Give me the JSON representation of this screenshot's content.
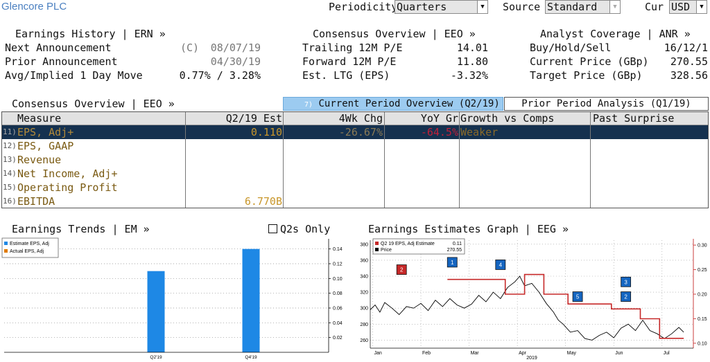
{
  "company": "Glencore PLC",
  "controls": {
    "periodicity_label": "Periodicity",
    "periodicity_value": "Quarters",
    "source_label": "Source",
    "source_value": "Standard",
    "cur_label": "Cur",
    "cur_value": "USD"
  },
  "earnings_history": {
    "title": "Earnings History | ERN »",
    "rows": [
      {
        "label": "Next Announcement",
        "prefix": "(C)",
        "value": "08/07/19"
      },
      {
        "label": "Prior Announcement",
        "prefix": "",
        "value": "04/30/19"
      },
      {
        "label": "Avg/Implied 1 Day Move",
        "prefix": "",
        "value": "0.77% / 3.28%"
      }
    ]
  },
  "consensus_overview_top": {
    "title": "Consensus Overview | EEO »",
    "rows": [
      {
        "label": "Trailing 12M P/E",
        "value": "14.01"
      },
      {
        "label": "Forward 12M P/E",
        "value": "11.80"
      },
      {
        "label": "Est. LTG (EPS)",
        "value": "-3.32%"
      }
    ]
  },
  "analyst_coverage": {
    "title": "Analyst Coverage | ANR »",
    "rows": [
      {
        "label": "Buy/Hold/Sell",
        "value": "16/12/1"
      },
      {
        "label": "Current Price (GBp)",
        "value": "270.55"
      },
      {
        "label": "Target Price (GBp)",
        "value": "328.56"
      }
    ]
  },
  "consensus_table": {
    "title": "Consensus Overview | EEO »",
    "tab_current_num": "7)",
    "tab_current": "Current Period Overview (Q2/19)",
    "tab_prior": "Prior Period Analysis (Q1/19)",
    "headers": [
      "Measure",
      "Q2/19 Est",
      "4Wk Chg",
      "YoY Gr",
      "Growth vs Comps",
      "Past Surprise"
    ],
    "rows": [
      {
        "num": "11)",
        "label": "EPS, Adj+",
        "est": "0.110",
        "chg": "-26.67%",
        "yoy": "-64.5%",
        "growth": "Weaker",
        "surprise": ""
      },
      {
        "num": "12)",
        "label": "EPS, GAAP",
        "est": "",
        "chg": "",
        "yoy": "",
        "growth": "",
        "surprise": ""
      },
      {
        "num": "13)",
        "label": "Revenue",
        "est": "",
        "chg": "",
        "yoy": "",
        "growth": "",
        "surprise": ""
      },
      {
        "num": "14)",
        "label": "Net Income, Adj+",
        "est": "",
        "chg": "",
        "yoy": "",
        "growth": "",
        "surprise": ""
      },
      {
        "num": "15)",
        "label": "Operating Profit",
        "est": "",
        "chg": "",
        "yoy": "",
        "growth": "",
        "surprise": ""
      },
      {
        "num": "16)",
        "label": "EBITDA",
        "est": "6.770B",
        "chg": "",
        "yoy": "",
        "growth": "",
        "surprise": ""
      }
    ],
    "colors": {
      "selected_row": "#15314f",
      "est": "#c8962a",
      "chg": "#8a7a55",
      "yoy": "#c0203a",
      "growth": "#8a6a2a"
    }
  },
  "earnings_trends": {
    "title": "Earnings Trends | EM »",
    "q2_only_label": "Q2s Only",
    "legend": [
      "Estimate EPS, Adj",
      "Actual EPS, Adj"
    ]
  },
  "earnings_graph": {
    "title": "Earnings Estimates Graph | EEG »",
    "legend": [
      {
        "label": "Q2 19 EPS, Adj Estimate",
        "value": "0.11"
      },
      {
        "label": "Price",
        "value": "270.55"
      }
    ],
    "year_label": "2019",
    "markers": [
      "2",
      "1",
      "4",
      "5",
      "3",
      "2"
    ]
  },
  "chart_data": [
    {
      "type": "bar",
      "title": "Earnings Trends",
      "categories": [
        "Q2'19",
        "Q4'19"
      ],
      "series": [
        {
          "name": "Estimate EPS, Adj",
          "values": [
            0.11,
            0.14
          ],
          "color": "#1e88e5"
        },
        {
          "name": "Actual EPS, Adj",
          "values": [
            null,
            null
          ],
          "color": "#e07b00"
        }
      ],
      "ylim": [
        0,
        0.15
      ],
      "yticks": [
        0.02,
        0.04,
        0.06,
        0.08,
        0.1,
        0.12,
        0.14
      ],
      "ytick_labels": [
        "0.02",
        "0.04",
        "0.06",
        "0.08",
        "0.10",
        "0.12",
        "0.14"
      ],
      "axis_side": "right",
      "grid": true,
      "legend": "top-left"
    },
    {
      "type": "line",
      "title": "Earnings Estimates Graph",
      "x_labels": [
        "Jan",
        "Feb",
        "Mar",
        "Apr",
        "May",
        "Jun",
        "Jul"
      ],
      "x_year": "2019",
      "y_left": {
        "ticks": [
          260,
          280,
          300,
          320,
          340,
          360,
          380
        ],
        "ylim": [
          250,
          385
        ]
      },
      "y_right": {
        "ticks": [
          0.1,
          0.15,
          0.2,
          0.25,
          0.3
        ],
        "labels": [
          "0.10",
          "0.15",
          "0.20",
          "0.25",
          "0.30"
        ],
        "ylim": [
          0.09,
          0.31
        ]
      },
      "series": [
        {
          "name": "Price",
          "axis": "left",
          "color": "#000000",
          "x": [
            0,
            0.1,
            0.2,
            0.3,
            0.45,
            0.6,
            0.75,
            0.9,
            1.05,
            1.2,
            1.35,
            1.5,
            1.65,
            1.8,
            1.95,
            2.1,
            2.25,
            2.4,
            2.55,
            2.7,
            2.85,
            3.0,
            3.1,
            3.2,
            3.35,
            3.5,
            3.65,
            3.8,
            3.9,
            4.0,
            4.15,
            4.3,
            4.45,
            4.6,
            4.75,
            4.9,
            5.05,
            5.2,
            5.35,
            5.5,
            5.65,
            5.8,
            5.95,
            6.1,
            6.25,
            6.4,
            6.5
          ],
          "y": [
            298,
            304,
            295,
            307,
            300,
            292,
            302,
            300,
            306,
            297,
            310,
            302,
            312,
            304,
            300,
            305,
            316,
            308,
            320,
            312,
            326,
            333,
            340,
            328,
            331,
            320,
            306,
            295,
            285,
            280,
            270,
            272,
            262,
            260,
            266,
            270,
            263,
            275,
            280,
            272,
            285,
            272,
            268,
            262,
            268,
            276,
            270
          ]
        },
        {
          "name": "Q2 19 EPS, Adj Estimate",
          "axis": "right",
          "color": "#c62828",
          "step": true,
          "x": [
            1.6,
            2.5,
            2.8,
            3.2,
            3.6,
            4.1,
            5.0,
            5.6,
            6.0,
            6.5
          ],
          "y": [
            0.23,
            0.23,
            0.2,
            0.24,
            0.2,
            0.18,
            0.17,
            0.15,
            0.11,
            0.11
          ]
        }
      ],
      "grid": true,
      "legend": "top-left"
    }
  ]
}
